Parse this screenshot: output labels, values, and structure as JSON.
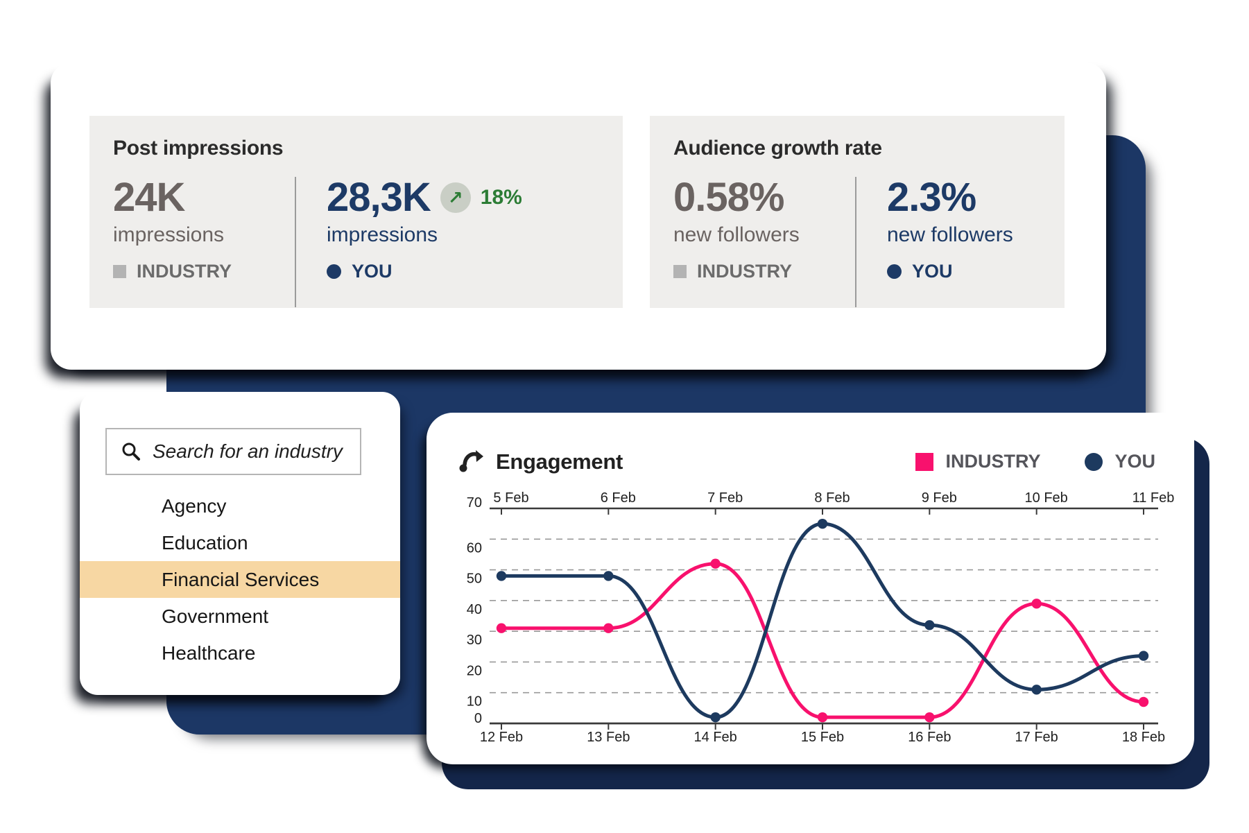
{
  "stats": {
    "post_impressions": {
      "title": "Post impressions",
      "industry": {
        "value": "24K",
        "unit": "impressions",
        "legend": "INDUSTRY"
      },
      "you": {
        "value": "28,3K",
        "unit": "impressions",
        "legend": "YOU",
        "change": "18%",
        "trend_icon": "arrow-up-right-icon"
      }
    },
    "audience_growth": {
      "title": "Audience growth rate",
      "industry": {
        "value": "0.58%",
        "unit": "new followers",
        "legend": "INDUSTRY"
      },
      "you": {
        "value": "2.3%",
        "unit": "new followers",
        "legend": "YOU"
      }
    }
  },
  "industry_search": {
    "placeholder": "Search for an industry",
    "search_icon": "magnifier-icon",
    "items": [
      "Agency",
      "Education",
      "Financial Services",
      "Government",
      "Healthcare"
    ],
    "selected": "Financial Services",
    "highlight_color": "#f7d7a3"
  },
  "engagement": {
    "title": "Engagement",
    "icon": "trend-arrow-icon",
    "legend": [
      {
        "label": "INDUSTRY",
        "color": "#f8116d",
        "marker": "square"
      },
      {
        "label": "YOU",
        "color": "#1d3a5f",
        "marker": "circle"
      }
    ],
    "chart_data": {
      "type": "line",
      "x_labels_top": [
        "5 Feb",
        "6 Feb",
        "7 Feb",
        "8 Feb",
        "9 Feb",
        "10 Feb",
        "11 Feb"
      ],
      "x_labels_bottom": [
        "12 Feb",
        "13 Feb",
        "14 Feb",
        "15 Feb",
        "16 Feb",
        "17 Feb",
        "18 Feb"
      ],
      "series": [
        {
          "name": "INDUSTRY",
          "color": "#f8116d",
          "values": [
            31,
            31,
            52,
            2,
            2,
            39,
            7
          ]
        },
        {
          "name": "YOU",
          "color": "#1d3a5f",
          "values": [
            48,
            48,
            2,
            65,
            32,
            11,
            22
          ]
        }
      ],
      "ylim": [
        0,
        70
      ],
      "yticks": [
        0,
        10,
        20,
        30,
        40,
        50,
        60,
        70
      ],
      "grid": "dashed-horizontal",
      "legend_position": "top-right"
    }
  },
  "colors": {
    "navy": "#1d3a66",
    "navy_panel": "#1c3765",
    "pink": "#f8116d",
    "gray_stat": "#6a6361",
    "green": "#2c7c35",
    "panel_gray": "#efeeec",
    "highlight": "#f7d7a3"
  }
}
